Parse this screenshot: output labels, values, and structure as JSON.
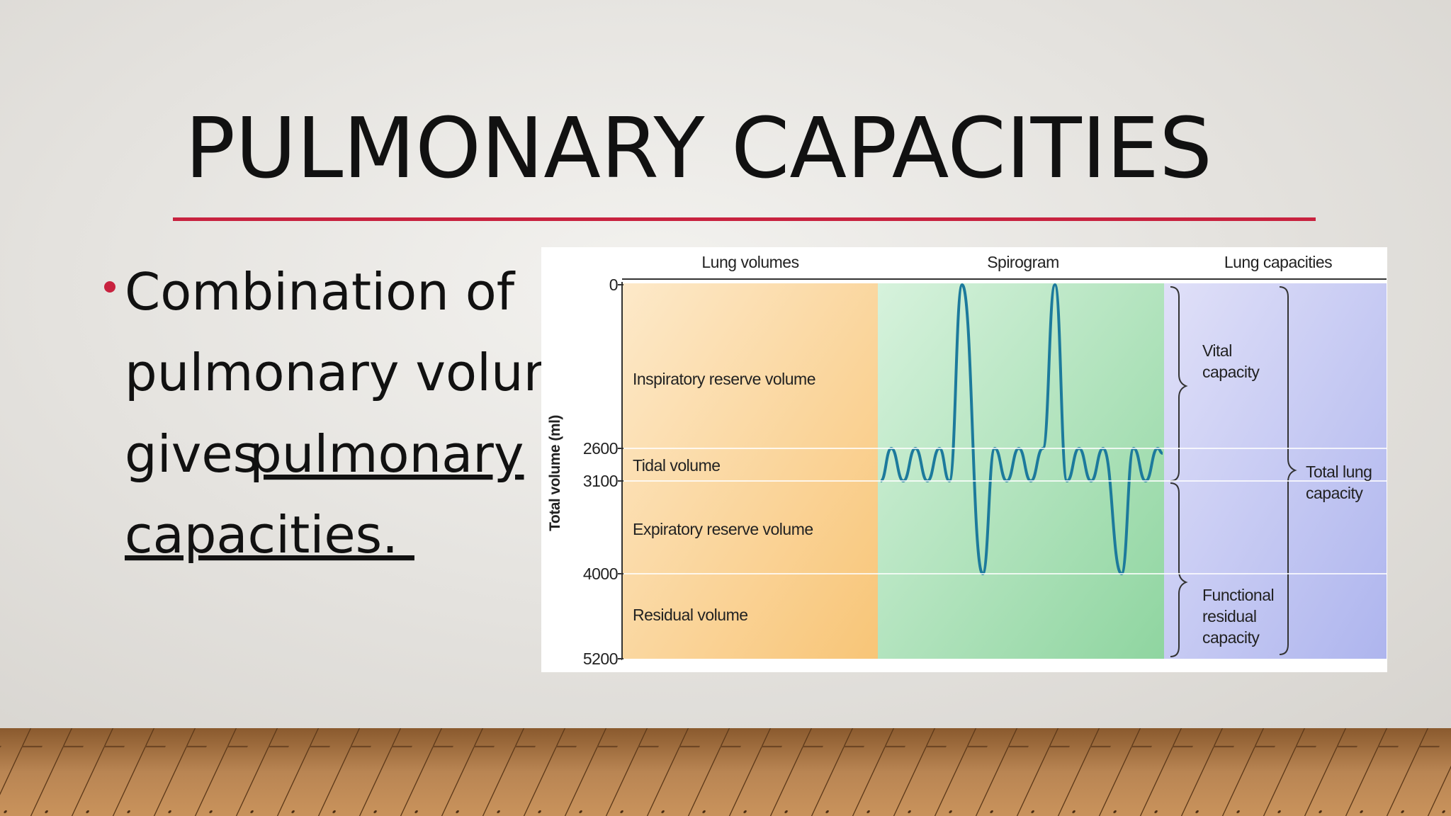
{
  "slide": {
    "title": "PULMONARY CAPACITIES",
    "bullet": {
      "lines": [
        "Combination of",
        "pulmonary volume",
        "gives"
      ],
      "link_lines": [
        "pulmonary",
        "capacities. "
      ]
    }
  },
  "figure": {
    "column_headers": [
      "Lung volumes",
      "Spirogram",
      "Lung capacities"
    ],
    "y_axis_label": "Total volume (ml)",
    "yticks": [
      0,
      2600,
      3100,
      4000,
      5200
    ],
    "volumes": [
      "Inspiratory reserve volume",
      "Tidal volume",
      "Expiratory reserve volume",
      "Residual volume"
    ],
    "capacities": [
      {
        "lines": [
          "Vital",
          "capacity"
        ]
      },
      {
        "lines": [
          "Total lung",
          "capacity"
        ]
      },
      {
        "lines": [
          "Functional",
          "residual",
          "capacity"
        ]
      }
    ]
  }
}
